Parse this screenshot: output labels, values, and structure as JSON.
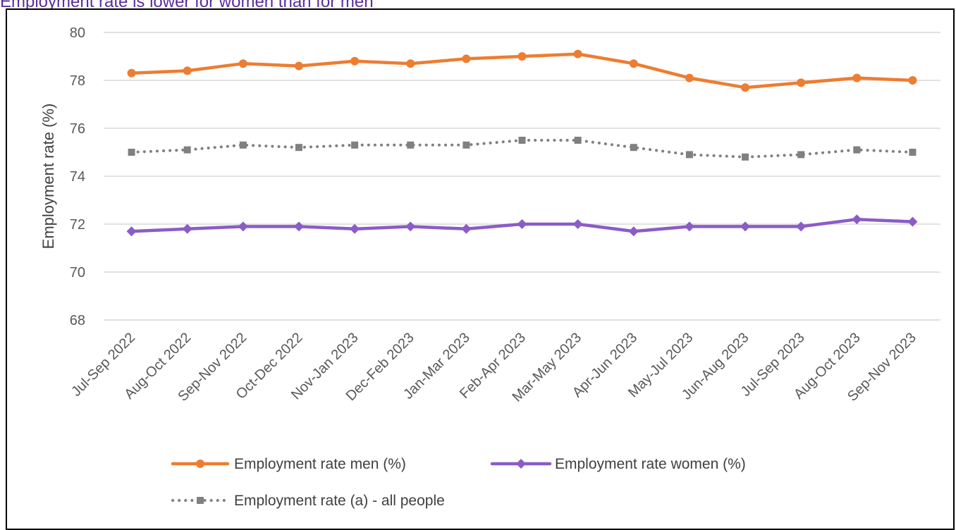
{
  "page_title": "Employment rate is lower for women than for men",
  "colors": {
    "men": "#ED7D31",
    "women": "#8B5CC6",
    "all": "#808080",
    "grid": "#D9D9D9",
    "tick": "#595959"
  },
  "chart_data": {
    "type": "line",
    "title": "",
    "xlabel": "",
    "ylabel": "Employment rate (%)",
    "ylim": [
      68,
      80
    ],
    "yticks": [
      68,
      70,
      72,
      74,
      76,
      78,
      80
    ],
    "grid": true,
    "legend_position": "bottom",
    "categories": [
      "Jul-Sep 2022",
      "Aug-Oct 2022",
      "Sep-Nov 2022",
      "Oct-Dec 2022",
      "Nov-Jan 2023",
      "Dec-Feb 2023",
      "Jan-Mar 2023",
      "Feb-Apr 2023",
      "Mar-May 2023",
      "Apr-Jun 2023",
      "May-Jul 2023",
      "Jun-Aug 2023",
      "Jul-Sep 2023",
      "Aug-Oct 2023",
      "Sep-Nov 2023"
    ],
    "series": [
      {
        "name": "Employment rate men (%)",
        "marker": "circle",
        "line": "solid",
        "values": [
          78.3,
          78.4,
          78.7,
          78.6,
          78.8,
          78.7,
          78.9,
          79.0,
          79.1,
          78.7,
          78.1,
          77.7,
          77.9,
          78.1,
          78.0
        ]
      },
      {
        "name": "Employment rate women (%)",
        "marker": "diamond",
        "line": "solid",
        "values": [
          71.7,
          71.8,
          71.9,
          71.9,
          71.8,
          71.9,
          71.8,
          72.0,
          72.0,
          71.7,
          71.9,
          71.9,
          71.9,
          72.2,
          72.1
        ]
      },
      {
        "name": "Employment rate (a) - all people",
        "marker": "square",
        "line": "dotted",
        "values": [
          75.0,
          75.1,
          75.3,
          75.2,
          75.3,
          75.3,
          75.3,
          75.5,
          75.5,
          75.2,
          74.9,
          74.8,
          74.9,
          75.1,
          75.0
        ]
      }
    ]
  }
}
